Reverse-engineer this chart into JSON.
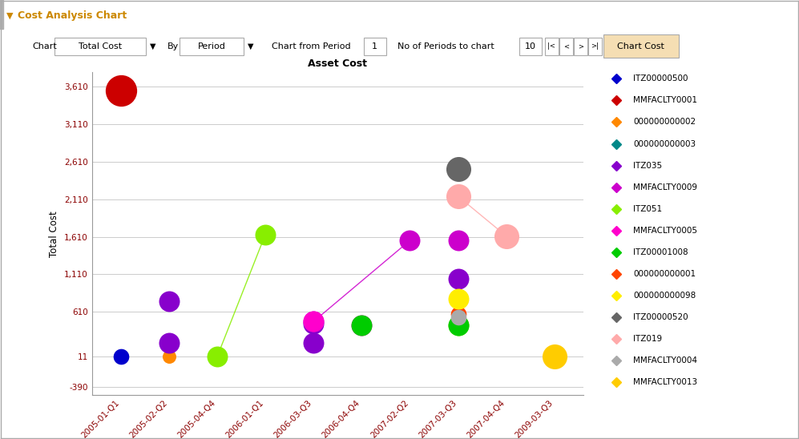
{
  "title": "Asset Cost",
  "xlabel": "Period",
  "ylabel": "Total Cost",
  "header_title": "Cost Analysis Chart",
  "yticks": [
    -390,
    11,
    610,
    1110,
    1610,
    2110,
    2610,
    3110,
    3610
  ],
  "ylim": [
    -500,
    3800
  ],
  "background_color": "#f0f0f0",
  "plot_bg_color": "#ffffff",
  "grid_color": "#cccccc",
  "periods": [
    "2005-01-Q1",
    "2005-02-Q2",
    "2005-04-Q4",
    "2006-01-Q1",
    "2006-03-Q3",
    "2006-04-Q4",
    "2007-02-Q2",
    "2007-03-Q3",
    "2007-04-Q4",
    "2009-03-Q3"
  ],
  "period_labels": [
    "2005-01-Q1",
    "2005-02-Q2",
    "2005-04-Q4",
    "2006-01-Q1",
    "2006-03-Q3",
    "2006-04-Q4",
    "2007-02-Q2",
    "2007-03-Q3",
    "2007-04-Q4",
    "2009-03-Q3"
  ],
  "series": [
    {
      "name": "ITZ00000500",
      "color": "#0000cc",
      "points": [
        {
          "period": "2005-01-Q1",
          "value": 11
        }
      ],
      "size": 200
    },
    {
      "name": "MMFACLTY0001",
      "color": "#cc0000",
      "points": [
        {
          "period": "2005-01-Q1",
          "value": 3560
        }
      ],
      "size": 800
    },
    {
      "name": "000000000002",
      "color": "#ff8800",
      "points": [
        {
          "period": "2005-02-Q2",
          "value": 11
        }
      ],
      "size": 150
    },
    {
      "name": "000000000003",
      "color": "#008888",
      "points": [
        {
          "period": "2005-02-Q2",
          "value": 160
        }
      ],
      "size": 150
    },
    {
      "name": "ITZ035",
      "color": "#8800cc",
      "points": [
        {
          "period": "2005-02-Q2",
          "value": 750
        },
        {
          "period": "2005-02-Q2",
          "value": 200
        },
        {
          "period": "2006-03-Q3",
          "value": 200
        },
        {
          "period": "2006-03-Q3",
          "value": 450
        },
        {
          "period": "2007-03-Q3",
          "value": 1050
        }
      ],
      "size": 350
    },
    {
      "name": "MMFACLTY0009",
      "color": "#cc00cc",
      "points": [
        {
          "period": "2006-03-Q3",
          "value": 480
        },
        {
          "period": "2007-02-Q2",
          "value": 1560
        },
        {
          "period": "2007-03-Q3",
          "value": 1560
        }
      ],
      "size": 350,
      "connect": true,
      "connect_indices": [
        0,
        1
      ]
    },
    {
      "name": "ITZ051",
      "color": "#88ee00",
      "points": [
        {
          "period": "2005-04-Q4",
          "value": 11
        },
        {
          "period": "2006-01-Q1",
          "value": 1640
        },
        {
          "period": "2007-03-Q3",
          "value": 430
        }
      ],
      "size": 350,
      "connect": true,
      "connect_indices": [
        0,
        1
      ]
    },
    {
      "name": "MMFACLTY0005",
      "color": "#ff00cc",
      "points": [
        {
          "period": "2006-03-Q3",
          "value": 480
        },
        {
          "period": "2006-04-Q4",
          "value": 430
        }
      ],
      "size": 350
    },
    {
      "name": "ITZ00001008",
      "color": "#00cc00",
      "points": [
        {
          "period": "2006-04-Q4",
          "value": 430
        },
        {
          "period": "2007-03-Q3",
          "value": 430
        }
      ],
      "size": 350
    },
    {
      "name": "000000000001",
      "color": "#ff4400",
      "points": [
        {
          "period": "2007-03-Q3",
          "value": 580
        }
      ],
      "size": 200
    },
    {
      "name": "000000000098",
      "color": "#ffee00",
      "points": [
        {
          "period": "2007-03-Q3",
          "value": 780
        }
      ],
      "size": 350
    },
    {
      "name": "ITZ00000520",
      "color": "#666666",
      "points": [
        {
          "period": "2007-03-Q3",
          "value": 2510
        }
      ],
      "size": 500
    },
    {
      "name": "ITZ019",
      "color": "#ffaaaa",
      "points": [
        {
          "period": "2007-03-Q3",
          "value": 2150
        },
        {
          "period": "2007-04-Q4",
          "value": 1620
        }
      ],
      "size": 500,
      "connect": true,
      "connect_indices": [
        0,
        1
      ]
    },
    {
      "name": "MMFACLTY0004",
      "color": "#aaaaaa",
      "points": [
        {
          "period": "2007-03-Q3",
          "value": 540
        }
      ],
      "size": 200
    },
    {
      "name": "MMFACLTY0013",
      "color": "#ffcc00",
      "points": [
        {
          "period": "2009-03-Q3",
          "value": 11
        }
      ],
      "size": 500
    }
  ],
  "legend_items": [
    {
      "name": "ITZ00000500",
      "color": "#0000cc"
    },
    {
      "name": "MMFACLTY0001",
      "color": "#cc0000"
    },
    {
      "name": "000000000002",
      "color": "#ff8800"
    },
    {
      "name": "000000000003",
      "color": "#008888"
    },
    {
      "name": "ITZ035",
      "color": "#8800cc"
    },
    {
      "name": "MMFACLTY0009",
      "color": "#cc00cc"
    },
    {
      "name": "ITZ051",
      "color": "#88ee00"
    },
    {
      "name": "MMFACLTY0005",
      "color": "#ff00cc"
    },
    {
      "name": "ITZ00001008",
      "color": "#00cc00"
    },
    {
      "name": "000000000001",
      "color": "#ff4400"
    },
    {
      "name": "000000000098",
      "color": "#ffee00"
    },
    {
      "name": "ITZ00000520",
      "color": "#666666"
    },
    {
      "name": "ITZ019",
      "color": "#ffaaaa"
    },
    {
      "name": "MMFACLTY0004",
      "color": "#aaaaaa"
    },
    {
      "name": "MMFACLTY0013",
      "color": "#ffcc00"
    }
  ]
}
